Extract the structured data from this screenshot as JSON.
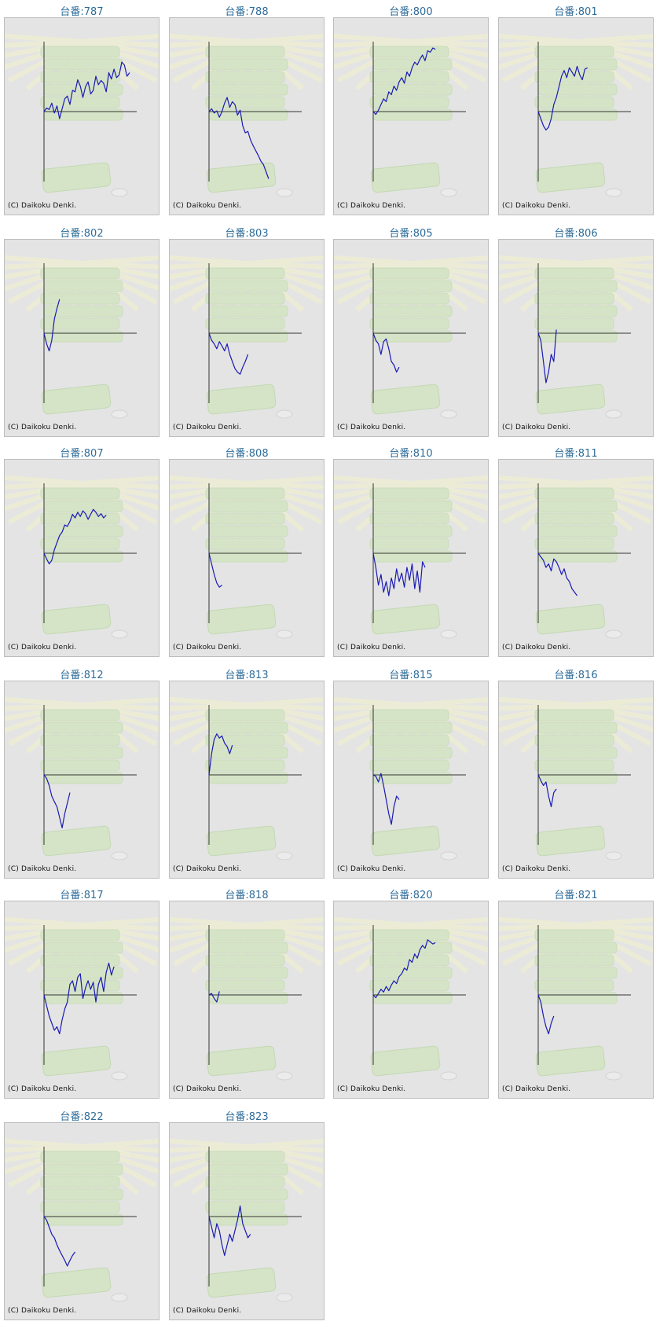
{
  "title_prefix": "台番:",
  "copyright": "(C) Daikoku Denki.",
  "colors": {
    "line": "#1a1ab4",
    "axis": "#333333",
    "title": "#2f6d9a",
    "panel": "#e4e4e4",
    "decor_green": "#c9e5b0",
    "decor_ray": "#f4f4cc"
  },
  "chart_data": [
    {
      "type": "line",
      "machine": "787",
      "title": "台番:787",
      "values": [
        0,
        5,
        3,
        12,
        -2,
        8,
        -10,
        4,
        18,
        22,
        10,
        30,
        28,
        45,
        36,
        20,
        35,
        42,
        25,
        30,
        50,
        38,
        44,
        40,
        28,
        55,
        46,
        60,
        48,
        52,
        70,
        66,
        50,
        55
      ]
    },
    {
      "type": "line",
      "machine": "788",
      "title": "台番:788",
      "values": [
        0,
        4,
        -2,
        1,
        -8,
        0,
        12,
        20,
        6,
        14,
        10,
        -5,
        2,
        -20,
        -30,
        -28,
        -40,
        -48,
        -55,
        -62,
        -70,
        -75,
        -85,
        -95
      ]
    },
    {
      "type": "line",
      "machine": "800",
      "title": "台番:800",
      "values": [
        0,
        -4,
        2,
        10,
        18,
        14,
        28,
        24,
        36,
        30,
        42,
        48,
        40,
        56,
        50,
        62,
        70,
        66,
        74,
        80,
        72,
        86,
        84,
        90,
        88
      ]
    },
    {
      "type": "line",
      "machine": "801",
      "title": "台番:801",
      "values": [
        0,
        -10,
        -20,
        -26,
        -22,
        -10,
        10,
        20,
        35,
        50,
        58,
        48,
        62,
        56,
        50,
        64,
        52,
        45,
        60,
        62
      ]
    },
    {
      "type": "line",
      "machine": "802",
      "title": "台番:802",
      "values": [
        0,
        -15,
        -25,
        -10,
        20,
        35,
        48
      ]
    },
    {
      "type": "line",
      "machine": "803",
      "title": "台番:803",
      "values": [
        0,
        -10,
        -15,
        -22,
        -12,
        -18,
        -25,
        -15,
        -30,
        -40,
        -50,
        -55,
        -58,
        -48,
        -40,
        -30
      ]
    },
    {
      "type": "line",
      "machine": "805",
      "title": "台番:805",
      "values": [
        0,
        -10,
        -15,
        -30,
        -12,
        -8,
        -22,
        -40,
        -45,
        -55,
        -48
      ]
    },
    {
      "type": "line",
      "machine": "806",
      "title": "台番:806",
      "values": [
        0,
        -10,
        -40,
        -70,
        -55,
        -30,
        -40,
        5
      ]
    },
    {
      "type": "line",
      "machine": "807",
      "title": "台番:807",
      "values": [
        0,
        -8,
        -15,
        -10,
        5,
        15,
        25,
        30,
        40,
        38,
        45,
        55,
        50,
        58,
        52,
        60,
        56,
        48,
        55,
        62,
        58,
        52,
        56,
        50,
        54
      ]
    },
    {
      "type": "line",
      "machine": "808",
      "title": "台番:808",
      "values": [
        0,
        -15,
        -30,
        -42,
        -48,
        -45
      ]
    },
    {
      "type": "line",
      "machine": "810",
      "title": "台番:810",
      "values": [
        0,
        -20,
        -45,
        -30,
        -55,
        -40,
        -60,
        -35,
        -50,
        -22,
        -40,
        -28,
        -48,
        -20,
        -38,
        -15,
        -50,
        -25,
        -55,
        -12,
        -20
      ]
    },
    {
      "type": "line",
      "machine": "811",
      "title": "台番:811",
      "values": [
        0,
        -5,
        -10,
        -20,
        -15,
        -25,
        -8,
        -12,
        -20,
        -30,
        -22,
        -35,
        -40,
        -50,
        -55,
        -60
      ]
    },
    {
      "type": "line",
      "machine": "812",
      "title": "台番:812",
      "values": [
        0,
        -5,
        -15,
        -30,
        -38,
        -45,
        -60,
        -75,
        -55,
        -40,
        -25
      ]
    },
    {
      "type": "line",
      "machine": "813",
      "title": "台番:813",
      "values": [
        0,
        30,
        50,
        58,
        52,
        55,
        45,
        40,
        30,
        42
      ]
    },
    {
      "type": "line",
      "machine": "815",
      "title": "台番:815",
      "values": [
        0,
        -2,
        -10,
        2,
        -15,
        -35,
        -55,
        -70,
        -45,
        -30,
        -35
      ]
    },
    {
      "type": "line",
      "machine": "816",
      "title": "台番:816",
      "values": [
        0,
        -8,
        -15,
        -10,
        -30,
        -45,
        -25,
        -20
      ]
    },
    {
      "type": "line",
      "machine": "817",
      "title": "台番:817",
      "values": [
        0,
        -15,
        -30,
        -40,
        -50,
        -45,
        -55,
        -35,
        -20,
        -10,
        15,
        20,
        5,
        25,
        30,
        -5,
        10,
        20,
        8,
        18,
        -10,
        15,
        25,
        5,
        32,
        45,
        28,
        40
      ]
    },
    {
      "type": "line",
      "machine": "818",
      "title": "台番:818",
      "values": [
        0,
        2,
        -5,
        -10,
        5
      ]
    },
    {
      "type": "line",
      "machine": "820",
      "title": "台番:820",
      "values": [
        0,
        -4,
        2,
        8,
        4,
        12,
        6,
        14,
        20,
        16,
        26,
        30,
        38,
        35,
        50,
        46,
        58,
        52,
        64,
        70,
        66,
        78,
        75,
        72,
        74
      ]
    },
    {
      "type": "line",
      "machine": "821",
      "title": "台番:821",
      "values": [
        0,
        -10,
        -30,
        -45,
        -55,
        -40,
        -30
      ]
    },
    {
      "type": "line",
      "machine": "822",
      "title": "台番:822",
      "values": [
        0,
        -5,
        -15,
        -25,
        -30,
        -40,
        -48,
        -55,
        -62,
        -70,
        -62,
        -55,
        -50
      ]
    },
    {
      "type": "line",
      "machine": "823",
      "title": "台番:823",
      "values": [
        0,
        -15,
        -30,
        -10,
        -20,
        -40,
        -55,
        -40,
        -25,
        -35,
        -20,
        -5,
        15,
        -10,
        -20,
        -30,
        -25
      ]
    }
  ]
}
